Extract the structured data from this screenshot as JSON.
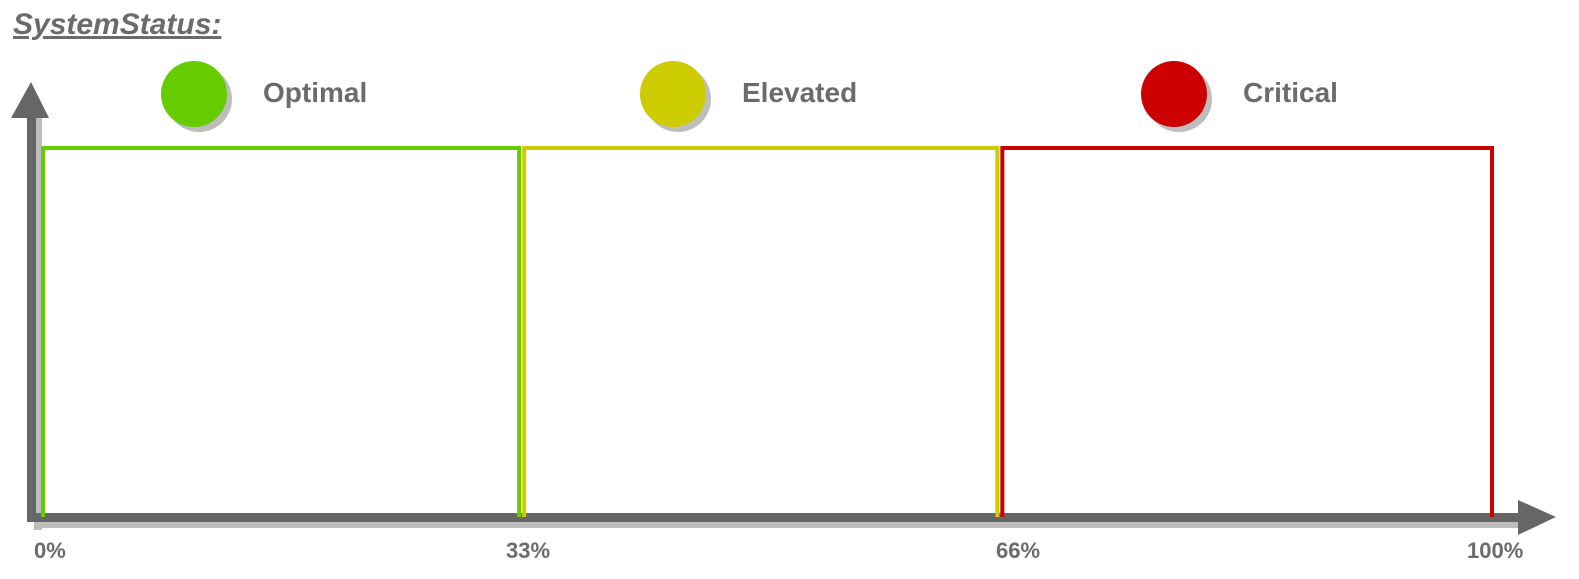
{
  "title": "SystemStatus:",
  "colors": {
    "axis": "#666666",
    "shadow": "#bdbdbd",
    "text": "#6b6b6b"
  },
  "zones": [
    {
      "name": "Optimal",
      "color": "#66cc00",
      "from": 0,
      "to": 33
    },
    {
      "name": "Elevated",
      "color": "#cccc00",
      "from": 33,
      "to": 66
    },
    {
      "name": "Critical",
      "color": "#cc0000",
      "from": 66,
      "to": 100
    }
  ],
  "x_ticks": [
    "0%",
    "33%",
    "66%",
    "100%"
  ]
}
